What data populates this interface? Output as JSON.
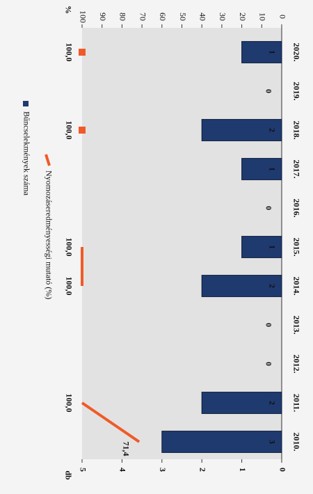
{
  "chart_data": {
    "type": "bar_line",
    "ylabel": "db",
    "y2label": "%",
    "categories": [
      "2010.",
      "2011.",
      "2012.",
      "2013.",
      "2014.",
      "2015.",
      "2016.",
      "2017.",
      "2018.",
      "2019.",
      "2020."
    ],
    "series": [
      {
        "name": "Bűncselekmények száma",
        "type": "bar",
        "color": "#1f3a6e",
        "values": [
          3,
          2,
          0,
          0,
          2,
          1,
          0,
          1,
          2,
          0,
          1
        ]
      },
      {
        "name": "Nyomozáseredményességi mutató (%)",
        "type": "line",
        "axis": "y2",
        "color": "#f05a28",
        "values": [
          71.4,
          100,
          null,
          null,
          100,
          100,
          null,
          null,
          100,
          null,
          100
        ],
        "value_labels": [
          "71,4",
          "100,0",
          null,
          null,
          "100,0",
          "100,0",
          null,
          null,
          "100,0",
          null,
          "100,0"
        ]
      }
    ],
    "ylim": [
      0,
      5
    ],
    "yticks": [
      0,
      1,
      2,
      3,
      4,
      5
    ],
    "y2lim": [
      0,
      100
    ],
    "y2ticks": [
      0,
      10,
      20,
      30,
      40,
      50,
      60,
      70,
      80,
      90,
      100
    ]
  }
}
